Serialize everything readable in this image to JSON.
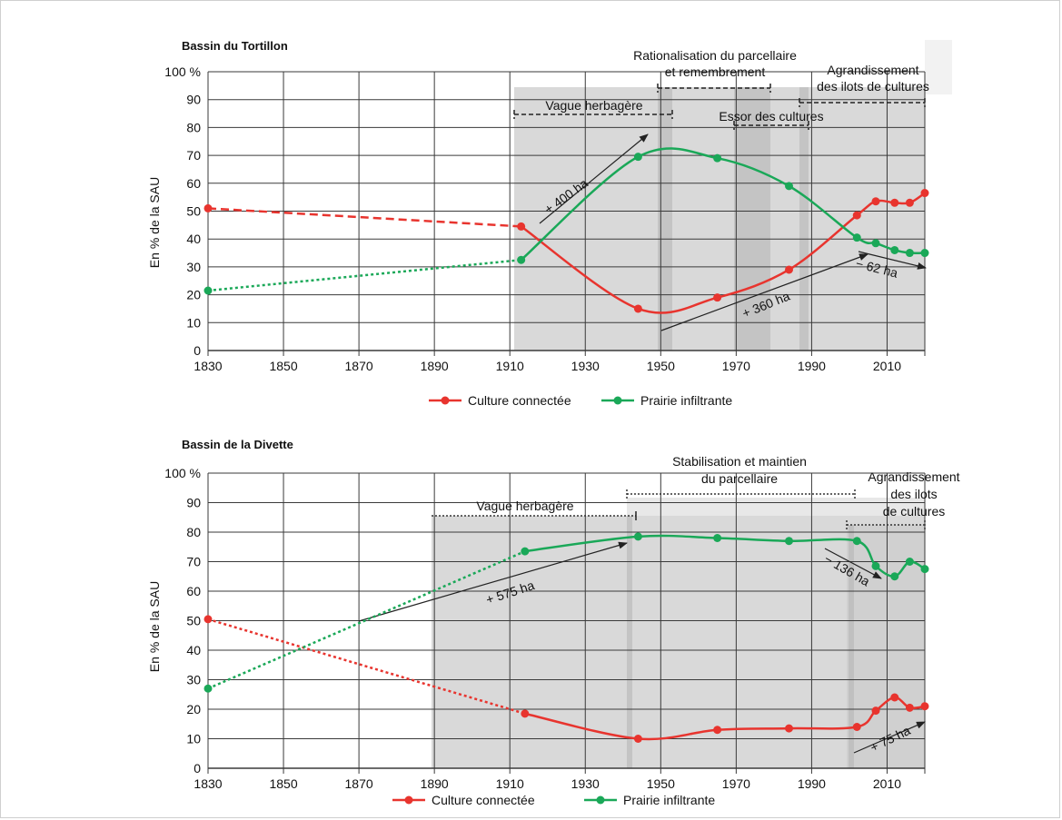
{
  "colors": {
    "culture": "#e8342e",
    "prairie": "#1aa858",
    "shade": "#d8d8d8",
    "shade_dark": "#c3c3c3",
    "grid": "#3a3a3a"
  },
  "chart_data": [
    {
      "type": "line",
      "title": "Bassin du Tortillon",
      "xlabel": "",
      "ylabel": "En % de la SAU",
      "xlim": [
        1830,
        2020
      ],
      "ylim": [
        0,
        100
      ],
      "x_ticks": [
        "1830",
        "1850",
        "1870",
        "1890",
        "1910",
        "1930",
        "1950",
        "1970",
        "1990",
        "2010"
      ],
      "y_ticks": [
        "0",
        "10",
        "20",
        "30",
        "40",
        "50",
        "60",
        "70",
        "80",
        "90",
        "100 %"
      ],
      "legend": [
        "Culture connectée",
        "Prairie infiltrante"
      ],
      "series": [
        {
          "name": "Culture connectée",
          "color": "#e8342e",
          "points": [
            [
              1830,
              51
            ],
            [
              1913,
              44.5
            ],
            [
              1944,
              15
            ],
            [
              1965,
              19
            ],
            [
              1984,
              29
            ],
            [
              2002,
              48.5
            ],
            [
              2007,
              53.5
            ],
            [
              2012,
              53
            ],
            [
              2016,
              53
            ],
            [
              2020,
              56.5
            ]
          ],
          "dashed_until": 1913
        },
        {
          "name": "Prairie infiltrante",
          "color": "#1aa858",
          "points": [
            [
              1830,
              21.5
            ],
            [
              1913,
              32.5
            ],
            [
              1944,
              69.5
            ],
            [
              1965,
              69
            ],
            [
              1984,
              59
            ],
            [
              2002,
              40.5
            ],
            [
              2007,
              38.5
            ],
            [
              2012,
              36
            ],
            [
              2016,
              35
            ],
            [
              2020,
              35
            ]
          ],
          "dashed_until": 1913
        }
      ],
      "annotations": {
        "vague": "Vague herbagère",
        "ration_1": "Rationalisation du parcellaire",
        "ration_2": "et remembrement",
        "agrand_1": "Agrandissement",
        "agrand_2": "des ilots de cultures",
        "essor": "Essor des cultures",
        "a400": "+ 400 ha",
        "a360": "+ 360 ha",
        "a62": "− 62 ha"
      }
    },
    {
      "type": "line",
      "title": "Bassin de la Divette",
      "xlabel": "",
      "ylabel": "En % de la SAU",
      "xlim": [
        1830,
        2020
      ],
      "ylim": [
        0,
        100
      ],
      "x_ticks": [
        "1830",
        "1850",
        "1870",
        "1890",
        "1910",
        "1930",
        "1950",
        "1970",
        "1990",
        "2010"
      ],
      "y_ticks": [
        "0",
        "10",
        "20",
        "30",
        "40",
        "50",
        "60",
        "70",
        "80",
        "90",
        "100 %"
      ],
      "legend": [
        "Culture connectée",
        "Prairie infiltrante"
      ],
      "series": [
        {
          "name": "Culture connectée",
          "color": "#e8342e",
          "points": [
            [
              1830,
              50.5
            ],
            [
              1914,
              18.5
            ],
            [
              1944,
              10
            ],
            [
              1965,
              13
            ],
            [
              1984,
              13.5
            ],
            [
              2002,
              14
            ],
            [
              2007,
              19.5
            ],
            [
              2012,
              24
            ],
            [
              2016,
              20.5
            ],
            [
              2020,
              21
            ]
          ],
          "dashed_until": 1914
        },
        {
          "name": "Prairie infiltrante",
          "color": "#1aa858",
          "points": [
            [
              1830,
              27
            ],
            [
              1914,
              73.5
            ],
            [
              1944,
              78.5
            ],
            [
              1965,
              78
            ],
            [
              1984,
              77
            ],
            [
              2002,
              77
            ],
            [
              2007,
              68.5
            ],
            [
              2012,
              65
            ],
            [
              2016,
              70
            ],
            [
              2020,
              67.5
            ]
          ],
          "dashed_until": 1914
        }
      ],
      "annotations": {
        "vague": "Vague herbagère",
        "stab_1": "Stabilisation et maintien",
        "stab_2": "du parcellaire",
        "agrand_1": "Agrandissement",
        "agrand_2": "des ilots",
        "agrand_3": "de cultures",
        "a575": "+ 575 ha",
        "a136": "− 136 ha",
        "a75": "+ 75 ha"
      }
    }
  ]
}
